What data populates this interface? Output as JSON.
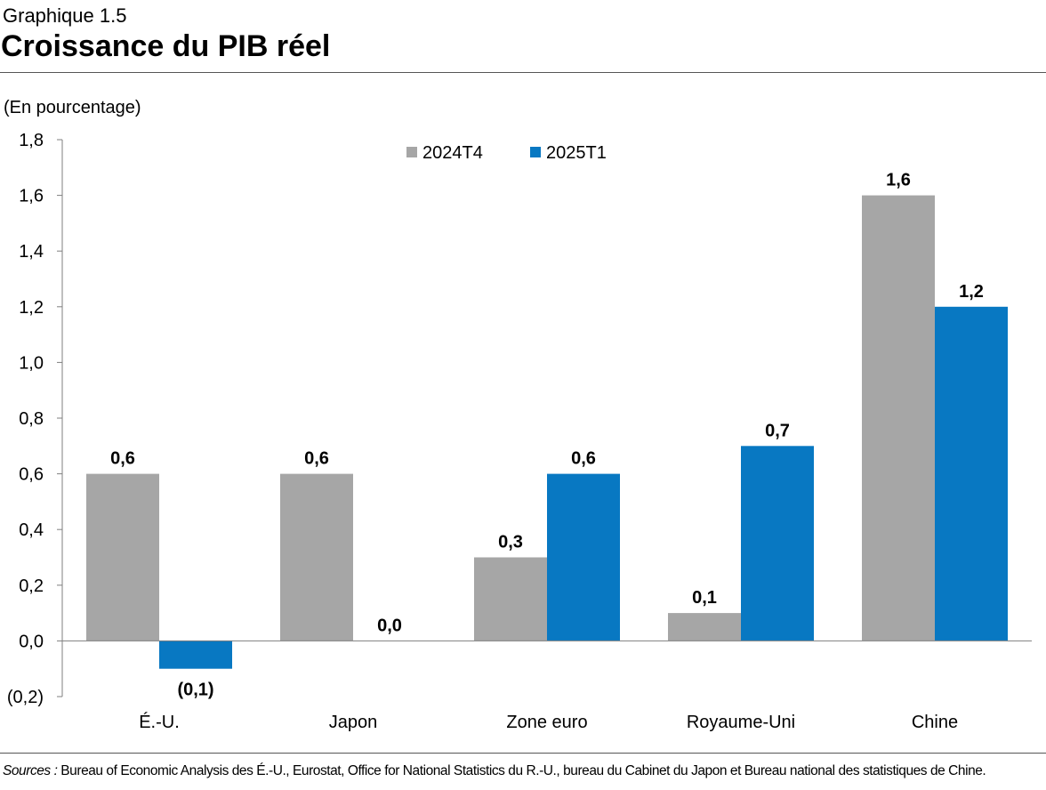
{
  "header": {
    "label": "Graphique 1.5",
    "title": "Croissance du PIB réel"
  },
  "chart_data": {
    "type": "bar",
    "title": "Croissance du PIB réel",
    "ylabel": "(En pourcentage)",
    "xlabel": "",
    "categories": [
      "É.-U.",
      "Japon",
      "Zone euro",
      "Royaume-Uni",
      "Chine"
    ],
    "series": [
      {
        "name": "2024T4",
        "color": "#a6a6a6",
        "values": [
          0.6,
          0.6,
          0.3,
          0.1,
          1.6
        ],
        "labels": [
          "0,6",
          "0,6",
          "0,3",
          "0,1",
          "1,6"
        ]
      },
      {
        "name": "2025T1",
        "color": "#0878c2",
        "values": [
          -0.1,
          0.0,
          0.6,
          0.7,
          1.2
        ],
        "labels": [
          "(0,1)",
          "0,0",
          "0,6",
          "0,7",
          "1,2"
        ]
      }
    ],
    "ylim": [
      -0.2,
      1.8
    ],
    "yticks": [
      -0.2,
      0.0,
      0.2,
      0.4,
      0.6,
      0.8,
      1.0,
      1.2,
      1.4,
      1.6,
      1.8
    ],
    "ytick_labels": [
      "(0,2)",
      "0,0",
      "0,2",
      "0,4",
      "0,6",
      "0,8",
      "1,0",
      "1,2",
      "1,4",
      "1,6",
      "1,8"
    ],
    "legend_position": "top-center",
    "grid": false
  },
  "footer": {
    "sources_label": "Sources :",
    "sources_text": " Bureau of Economic Analysis des É.-U., Eurostat, Office for National Statistics du R.-U., bureau du Cabinet du Japon et Bureau national des statistiques de Chine."
  }
}
